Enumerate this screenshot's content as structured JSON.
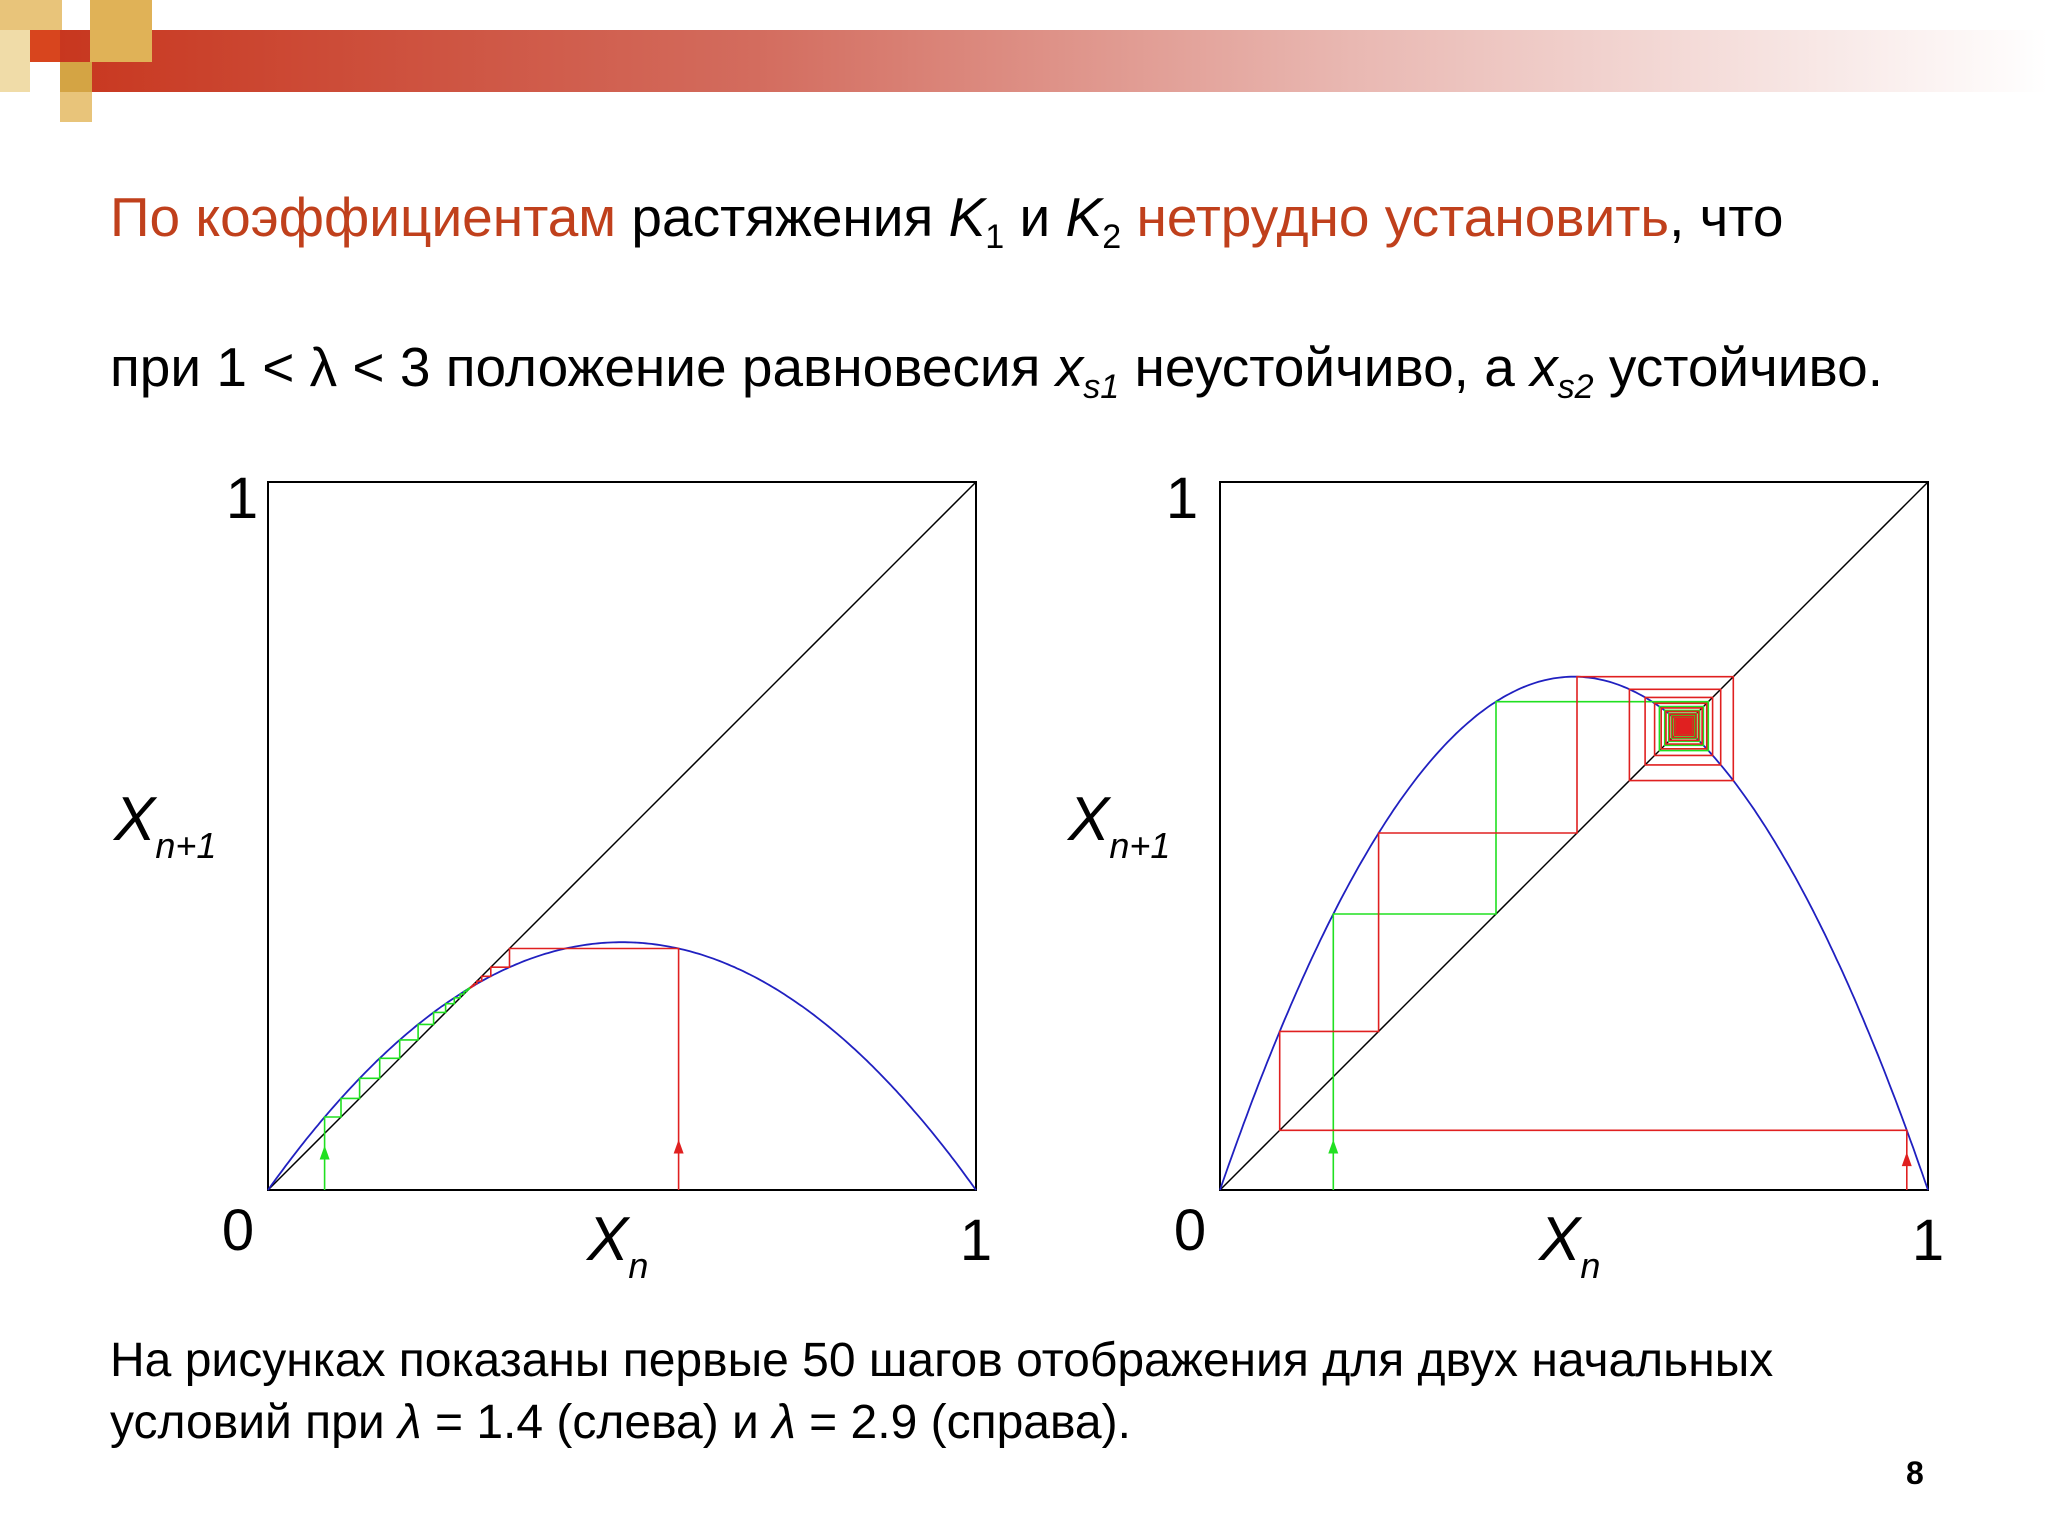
{
  "heading": {
    "line1": {
      "p1": "По коэффициентам",
      "p2": " растяжения ",
      "k": "K",
      "s1": "1",
      "p3": " и ",
      "s2": "2",
      "p4": " нетрудно установить",
      "p5": ", что"
    },
    "line2": {
      "p1": "при 1 < λ < 3 положение равновесия ",
      "x": "x",
      "s1": "s1",
      "p2": " неустойчиво, а ",
      "s2": "s2",
      "p3": " устойчиво."
    }
  },
  "caption": {
    "line1": "На рисунках показаны первые 50 шагов отображения для двух начальных",
    "l2a": "условий при ",
    "lam": "λ",
    "l2b": " = 1.4 (слева) и ",
    "l2c": " = 2.9 (справа)."
  },
  "page_number": "8",
  "colors": {
    "accent_text": "#c0401c",
    "curve": "#2020c0",
    "diagonal": "#000000",
    "orbit_red": "#e02020",
    "orbit_green": "#20e020"
  },
  "diagrams": [
    {
      "map": "logistic",
      "lambda": 1.4,
      "steps": 50,
      "orbits": [
        {
          "x0": 0.08,
          "color": "green"
        },
        {
          "x0": 0.58,
          "color": "red"
        }
      ],
      "axis": {
        "y_top": "1",
        "x_origin": "0",
        "x_right": "1",
        "xlabel_main": "X",
        "xlabel_sub": "n",
        "ylabel_main": "X",
        "ylabel_sub": "n+1"
      }
    },
    {
      "map": "logistic",
      "lambda": 2.9,
      "steps": 50,
      "orbits": [
        {
          "x0": 0.16,
          "color": "green"
        },
        {
          "x0": 0.97,
          "color": "red"
        }
      ],
      "axis": {
        "y_top": "1",
        "x_origin": "0",
        "x_right": "1",
        "xlabel_main": "X",
        "xlabel_sub": "n",
        "ylabel_main": "X",
        "ylabel_sub": "n+1"
      }
    }
  ]
}
